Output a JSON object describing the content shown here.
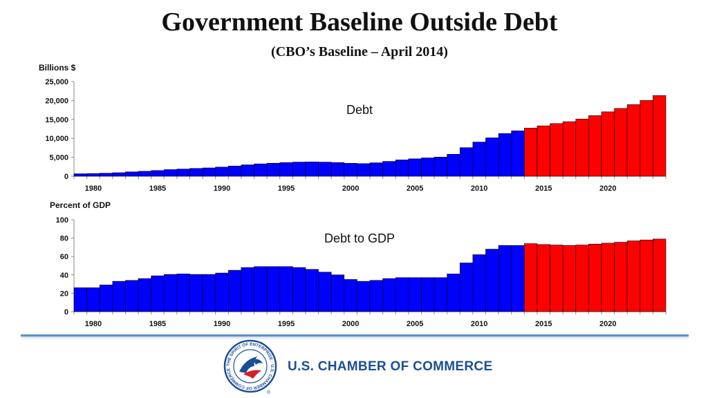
{
  "title": "Government Baseline Outside Debt",
  "subtitle": "(CBO’s Baseline – April 2014)",
  "colors": {
    "actual": "#0000ff",
    "projected": "#ff0000",
    "divider": "#5b8fc9",
    "brand": "#1c4e96"
  },
  "chart_data": [
    {
      "type": "bar",
      "label": "Debt",
      "ylabel": "Billions $",
      "ylim": [
        0,
        25000
      ],
      "yticks": [
        "0",
        "5,000",
        "10,000",
        "15,000",
        "20,000",
        "25,000"
      ],
      "xticks": [
        "1980",
        "1985",
        "1990",
        "1995",
        "2000",
        "2005",
        "2010",
        "2015",
        "2020"
      ],
      "years": [
        1979,
        1980,
        1981,
        1982,
        1983,
        1984,
        1985,
        1986,
        1987,
        1988,
        1989,
        1990,
        1991,
        1992,
        1993,
        1994,
        1995,
        1996,
        1997,
        1998,
        1999,
        2000,
        2001,
        2002,
        2003,
        2004,
        2005,
        2006,
        2007,
        2008,
        2009,
        2010,
        2011,
        2012,
        2013,
        2014,
        2015,
        2016,
        2017,
        2018,
        2019,
        2020,
        2021,
        2022,
        2023,
        2024
      ],
      "values": [
        640,
        710,
        790,
        920,
        1140,
        1300,
        1500,
        1740,
        1890,
        2050,
        2190,
        2410,
        2690,
        3000,
        3250,
        3430,
        3600,
        3730,
        3770,
        3720,
        3610,
        3410,
        3320,
        3540,
        3910,
        4300,
        4590,
        4830,
        5040,
        5800,
        7540,
        9020,
        10130,
        11280,
        11980,
        12700,
        13300,
        13900,
        14400,
        15100,
        16000,
        17000,
        17900,
        18900,
        20000,
        21300
      ],
      "projected_from": 2014
    },
    {
      "type": "bar",
      "label": "Debt to GDP",
      "ylabel": "Percent of GDP",
      "ylim": [
        0,
        100
      ],
      "yticks": [
        "0",
        "20",
        "40",
        "60",
        "80",
        "100"
      ],
      "xticks": [
        "1980",
        "1985",
        "1990",
        "1995",
        "2000",
        "2005",
        "2010",
        "2015",
        "2020"
      ],
      "years": [
        1979,
        1980,
        1981,
        1982,
        1983,
        1984,
        1985,
        1986,
        1987,
        1988,
        1989,
        1990,
        1991,
        1992,
        1993,
        1994,
        1995,
        1996,
        1997,
        1998,
        1999,
        2000,
        2001,
        2002,
        2003,
        2004,
        2005,
        2006,
        2007,
        2008,
        2009,
        2010,
        2011,
        2012,
        2013,
        2014,
        2015,
        2016,
        2017,
        2018,
        2019,
        2020,
        2021,
        2022,
        2023,
        2024
      ],
      "values": [
        26,
        26,
        29,
        33,
        34,
        36,
        39,
        40.5,
        41,
        40.5,
        40.5,
        42,
        45,
        48,
        49,
        49,
        49,
        48,
        46,
        43,
        40,
        35,
        33,
        34,
        36,
        37,
        37,
        37,
        37,
        41,
        53,
        62,
        68,
        72,
        72,
        74,
        73,
        72.5,
        72,
        72.5,
        73.5,
        74.5,
        75.5,
        77,
        78,
        79
      ],
      "projected_from": 2014
    }
  ],
  "footer": {
    "org_name": "U.S. CHAMBER OF COMMERCE",
    "seal_text": "THE SPIRIT OF ENTERPRISE · U.S. CHAMBER OF COMMERCE ·",
    "registered": "®"
  }
}
